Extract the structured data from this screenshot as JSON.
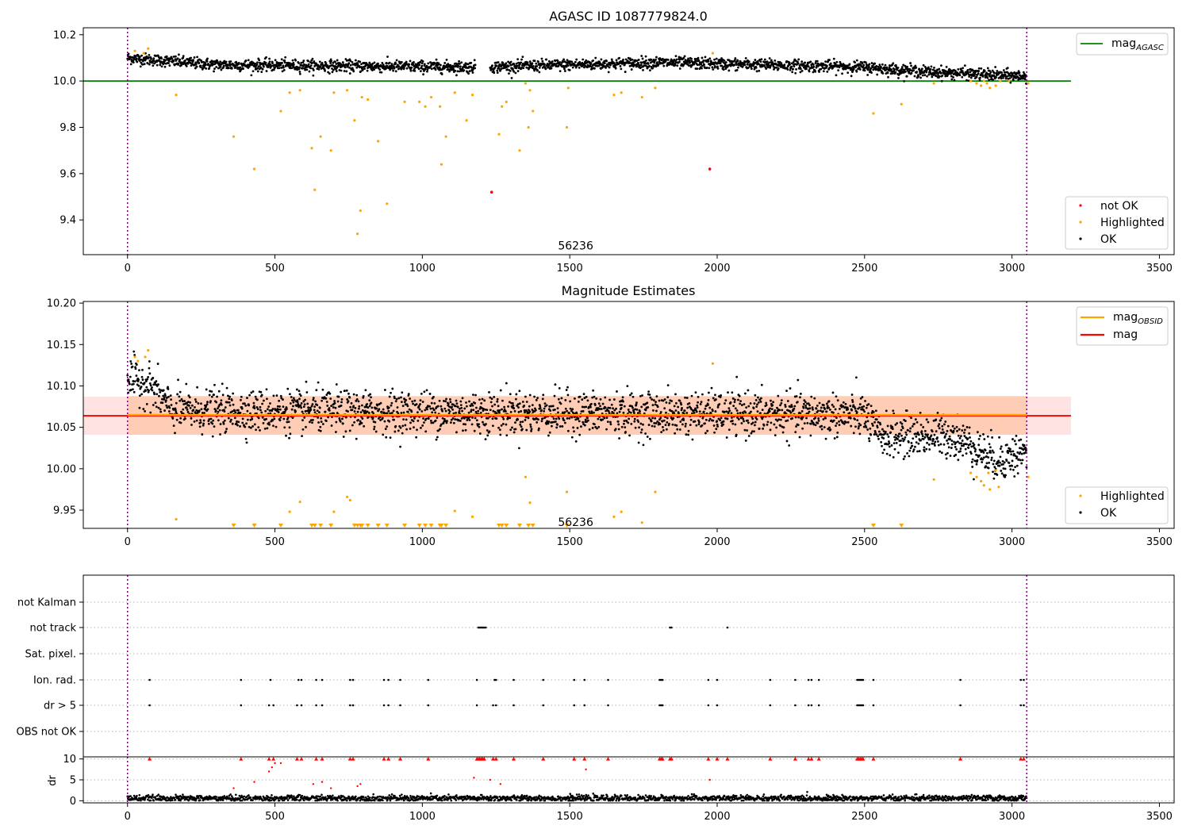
{
  "chart_data": [
    {
      "type": "scatter",
      "title": "AGASC ID 1087779824.0",
      "xlim": [
        -150,
        3550
      ],
      "ylim": [
        9.25,
        10.23
      ],
      "xticks": [
        0,
        500,
        1000,
        1500,
        2000,
        2500,
        3000,
        3500
      ],
      "yticks": [
        9.4,
        9.6,
        9.8,
        10.0,
        10.2
      ],
      "hline": {
        "name": "mag_AGASC",
        "label_main": "mag",
        "label_sub": "AGASC",
        "y": 10.0,
        "x_range": [
          -150,
          3200
        ],
        "color": "#008000"
      },
      "vlines": [
        0,
        3050
      ],
      "annotation": {
        "text": "56236",
        "x": 1520,
        "y": 9.29
      },
      "legend_top": [
        {
          "label_main": "mag",
          "label_sub": "AGASC",
          "color": "#008000",
          "kind": "line"
        }
      ],
      "legend_bottom": [
        {
          "label": "not OK",
          "color": "#ff0000",
          "kind": "dot"
        },
        {
          "label": "Highlighted",
          "color": "#ffa500",
          "kind": "dot"
        },
        {
          "label": "OK",
          "color": "#000000",
          "kind": "dot"
        }
      ],
      "series": [
        {
          "name": "OK",
          "color": "#000000",
          "trend": [
            [
              0,
              10.1
            ],
            [
              300,
              10.07
            ],
            [
              1200,
              10.06
            ],
            [
              1800,
              10.08
            ],
            [
              2500,
              10.06
            ],
            [
              2700,
              10.04
            ],
            [
              3050,
              10.02
            ]
          ],
          "noise": 0.018,
          "gaps": [
            [
              1180,
              1230
            ]
          ]
        },
        {
          "name": "Highlighted",
          "color": "#ffa500",
          "points": [
            [
              25,
              10.13
            ],
            [
              55,
              10.12
            ],
            [
              70,
              10.14
            ],
            [
              165,
              9.94
            ],
            [
              360,
              9.76
            ],
            [
              430,
              9.62
            ],
            [
              520,
              9.87
            ],
            [
              550,
              9.95
            ],
            [
              585,
              9.96
            ],
            [
              625,
              9.71
            ],
            [
              635,
              9.53
            ],
            [
              655,
              9.76
            ],
            [
              690,
              9.7
            ],
            [
              700,
              9.95
            ],
            [
              745,
              9.96
            ],
            [
              770,
              9.83
            ],
            [
              780,
              9.34
            ],
            [
              790,
              9.44
            ],
            [
              795,
              9.93
            ],
            [
              815,
              9.92
            ],
            [
              850,
              9.74
            ],
            [
              880,
              9.47
            ],
            [
              940,
              9.91
            ],
            [
              990,
              9.91
            ],
            [
              1010,
              9.89
            ],
            [
              1030,
              9.93
            ],
            [
              1060,
              9.89
            ],
            [
              1065,
              9.64
            ],
            [
              1080,
              9.76
            ],
            [
              1110,
              9.95
            ],
            [
              1150,
              9.83
            ],
            [
              1170,
              9.94
            ],
            [
              1260,
              9.77
            ],
            [
              1270,
              9.89
            ],
            [
              1285,
              9.91
            ],
            [
              1330,
              9.7
            ],
            [
              1350,
              9.99
            ],
            [
              1360,
              9.8
            ],
            [
              1365,
              9.96
            ],
            [
              1375,
              9.87
            ],
            [
              1490,
              9.8
            ],
            [
              1495,
              9.97
            ],
            [
              1650,
              9.94
            ],
            [
              1675,
              9.95
            ],
            [
              1745,
              9.93
            ],
            [
              1790,
              9.97
            ],
            [
              1985,
              10.12
            ],
            [
              2530,
              9.86
            ],
            [
              2625,
              9.9
            ],
            [
              2735,
              9.99
            ],
            [
              2860,
              10.0
            ],
            [
              2880,
              9.99
            ],
            [
              2895,
              9.98
            ],
            [
              2905,
              10.0
            ],
            [
              2915,
              9.99
            ],
            [
              2925,
              9.97
            ],
            [
              2945,
              9.98
            ],
            [
              2960,
              10.0
            ],
            [
              2990,
              10.0
            ],
            [
              3055,
              9.99
            ]
          ]
        },
        {
          "name": "not OK",
          "color": "#ff0000",
          "points": [
            [
              1235,
              9.52
            ],
            [
              1975,
              9.62
            ]
          ]
        }
      ]
    },
    {
      "type": "scatter",
      "title": "Magnitude Estimates",
      "xlim": [
        -150,
        3550
      ],
      "ylim": [
        9.928,
        10.202
      ],
      "xticks": [
        0,
        500,
        1000,
        1500,
        2000,
        2500,
        3000,
        3500
      ],
      "yticks": [
        9.95,
        10.0,
        10.05,
        10.1,
        10.15,
        10.2
      ],
      "mag": {
        "y": 10.064,
        "band": [
          10.041,
          10.087
        ],
        "x_range": [
          -150,
          3200
        ],
        "color": "#ff0000"
      },
      "mag_obsid": {
        "y": 10.065,
        "band": [
          10.041,
          10.088
        ],
        "x_range": [
          0,
          3050
        ],
        "color": "#ffa500"
      },
      "vlines": [
        0,
        3050
      ],
      "annotation": {
        "text": "56236",
        "x": 1520,
        "y": 9.932
      },
      "legend_top": [
        {
          "label_main": "mag",
          "label_sub": "OBSID",
          "color": "#ffa500",
          "kind": "line"
        },
        {
          "label_main": "mag",
          "label_sub": "",
          "color": "#ff0000",
          "kind": "line"
        }
      ],
      "legend_bottom": [
        {
          "label": "Highlighted",
          "color": "#ffa500",
          "kind": "dot"
        },
        {
          "label": "OK",
          "color": "#000000",
          "kind": "dot"
        }
      ],
      "series": [
        {
          "name": "OK",
          "color": "#000000",
          "trend": [
            [
              0,
              10.11
            ],
            [
              80,
              10.1
            ],
            [
              150,
              10.07
            ],
            [
              2500,
              10.065
            ],
            [
              2550,
              10.04
            ],
            [
              2800,
              10.04
            ],
            [
              2950,
              10.01
            ],
            [
              3050,
              10.02
            ]
          ],
          "noise": 0.018,
          "gaps": []
        },
        {
          "name": "Highlighted",
          "color": "#ffa500",
          "points": [
            [
              25,
              10.135
            ],
            [
              35,
              10.13
            ],
            [
              60,
              10.135
            ],
            [
              70,
              10.143
            ],
            [
              165,
              9.939
            ],
            [
              550,
              9.948
            ],
            [
              585,
              9.96
            ],
            [
              700,
              9.948
            ],
            [
              745,
              9.966
            ],
            [
              755,
              9.962
            ],
            [
              1110,
              9.949
            ],
            [
              1170,
              9.942
            ],
            [
              1350,
              9.99
            ],
            [
              1365,
              9.959
            ],
            [
              1490,
              9.972
            ],
            [
              1650,
              9.942
            ],
            [
              1675,
              9.948
            ],
            [
              1745,
              9.935
            ],
            [
              1790,
              9.972
            ],
            [
              1985,
              10.127
            ],
            [
              2735,
              9.987
            ],
            [
              2860,
              9.995
            ],
            [
              2880,
              9.99
            ],
            [
              2895,
              9.985
            ],
            [
              2905,
              9.98
            ],
            [
              2920,
              9.995
            ],
            [
              2925,
              9.975
            ],
            [
              2945,
              9.998
            ],
            [
              2955,
              9.978
            ],
            [
              3055,
              9.99
            ]
          ]
        },
        {
          "name": "Highlighted (below range)",
          "color": "#ffa500",
          "x_values": [
            360,
            430,
            520,
            625,
            635,
            655,
            690,
            770,
            780,
            790,
            795,
            815,
            850,
            880,
            940,
            990,
            1010,
            1030,
            1060,
            1065,
            1080,
            1260,
            1270,
            1285,
            1330,
            1360,
            1375,
            1490,
            2530,
            2625
          ]
        }
      ]
    },
    {
      "type": "scatter",
      "title": "",
      "xlim": [
        -150,
        3550
      ],
      "xticks": [
        0,
        500,
        1000,
        1500,
        2000,
        2500,
        3000,
        3500
      ],
      "flag_rows": [
        "not Kalman",
        "not track",
        "Sat. pixel.",
        "Ion. rad.",
        "dr > 5",
        "OBS not OK"
      ],
      "flags": {
        "not Kalman": [],
        "not track": [
          1190,
          1195,
          1200,
          1205,
          1210,
          1215,
          1840,
          1845,
          2035
        ],
        "Sat. pixel.": [],
        "Ion. rad.": [
          75,
          385,
          485,
          580,
          590,
          640,
          660,
          755,
          765,
          870,
          885,
          925,
          1020,
          1185,
          1245,
          1250,
          1310,
          1410,
          1515,
          1550,
          1630,
          1805,
          1810,
          1815,
          1970,
          2000,
          2180,
          2265,
          2310,
          2320,
          2345,
          2475,
          2480,
          2485,
          2490,
          2495,
          2530,
          2825,
          3030,
          3040
        ],
        "dr > 5": [
          75,
          385,
          480,
          495,
          575,
          590,
          640,
          660,
          755,
          765,
          870,
          885,
          925,
          1020,
          1185,
          1240,
          1250,
          1310,
          1410,
          1515,
          1550,
          1630,
          1805,
          1810,
          1815,
          1970,
          2000,
          2180,
          2265,
          2310,
          2320,
          2345,
          2475,
          2480,
          2485,
          2490,
          2495,
          2530,
          2825,
          3030,
          3040
        ],
        "OBS not OK": []
      },
      "dr": {
        "ylabel": "dr",
        "yticks": [
          0,
          5,
          10
        ],
        "ylim": [
          -0.5,
          10.5
        ],
        "clip_value": 10,
        "baseline_trend": [
          [
            0,
            0.6
          ],
          [
            3050,
            0.6
          ]
        ],
        "red_points": [
          [
            75,
            10
          ],
          [
            385,
            10
          ],
          [
            480,
            10
          ],
          [
            495,
            10
          ],
          [
            500,
            9
          ],
          [
            520,
            9
          ],
          [
            575,
            10
          ],
          [
            590,
            10
          ],
          [
            640,
            10
          ],
          [
            660,
            10
          ],
          [
            755,
            10
          ],
          [
            765,
            10
          ],
          [
            870,
            10
          ],
          [
            885,
            10
          ],
          [
            925,
            10
          ],
          [
            1020,
            10
          ],
          [
            1185,
            10
          ],
          [
            1190,
            10
          ],
          [
            1195,
            10
          ],
          [
            1200,
            10
          ],
          [
            1205,
            10
          ],
          [
            1210,
            10
          ],
          [
            1240,
            10
          ],
          [
            1250,
            10
          ],
          [
            1310,
            10
          ],
          [
            1410,
            10
          ],
          [
            1515,
            10
          ],
          [
            1550,
            10
          ],
          [
            1630,
            10
          ],
          [
            1805,
            10
          ],
          [
            1810,
            10
          ],
          [
            1815,
            10
          ],
          [
            1840,
            10
          ],
          [
            1845,
            10
          ],
          [
            1970,
            10
          ],
          [
            2000,
            10
          ],
          [
            2035,
            10
          ],
          [
            2180,
            10
          ],
          [
            2265,
            10
          ],
          [
            2310,
            10
          ],
          [
            2320,
            10
          ],
          [
            2345,
            10
          ],
          [
            2475,
            10
          ],
          [
            2480,
            10
          ],
          [
            2485,
            10
          ],
          [
            2490,
            10
          ],
          [
            2495,
            10
          ],
          [
            2530,
            10
          ],
          [
            2825,
            10
          ],
          [
            3030,
            10
          ],
          [
            3040,
            10
          ],
          [
            360,
            3
          ],
          [
            430,
            4.5
          ],
          [
            480,
            7
          ],
          [
            490,
            8
          ],
          [
            630,
            4
          ],
          [
            660,
            4.5
          ],
          [
            690,
            3
          ],
          [
            780,
            3.5
          ],
          [
            790,
            4
          ],
          [
            1175,
            5.5
          ],
          [
            1230,
            5
          ],
          [
            1265,
            4
          ],
          [
            1555,
            7.5
          ],
          [
            1975,
            5
          ]
        ]
      }
    }
  ]
}
